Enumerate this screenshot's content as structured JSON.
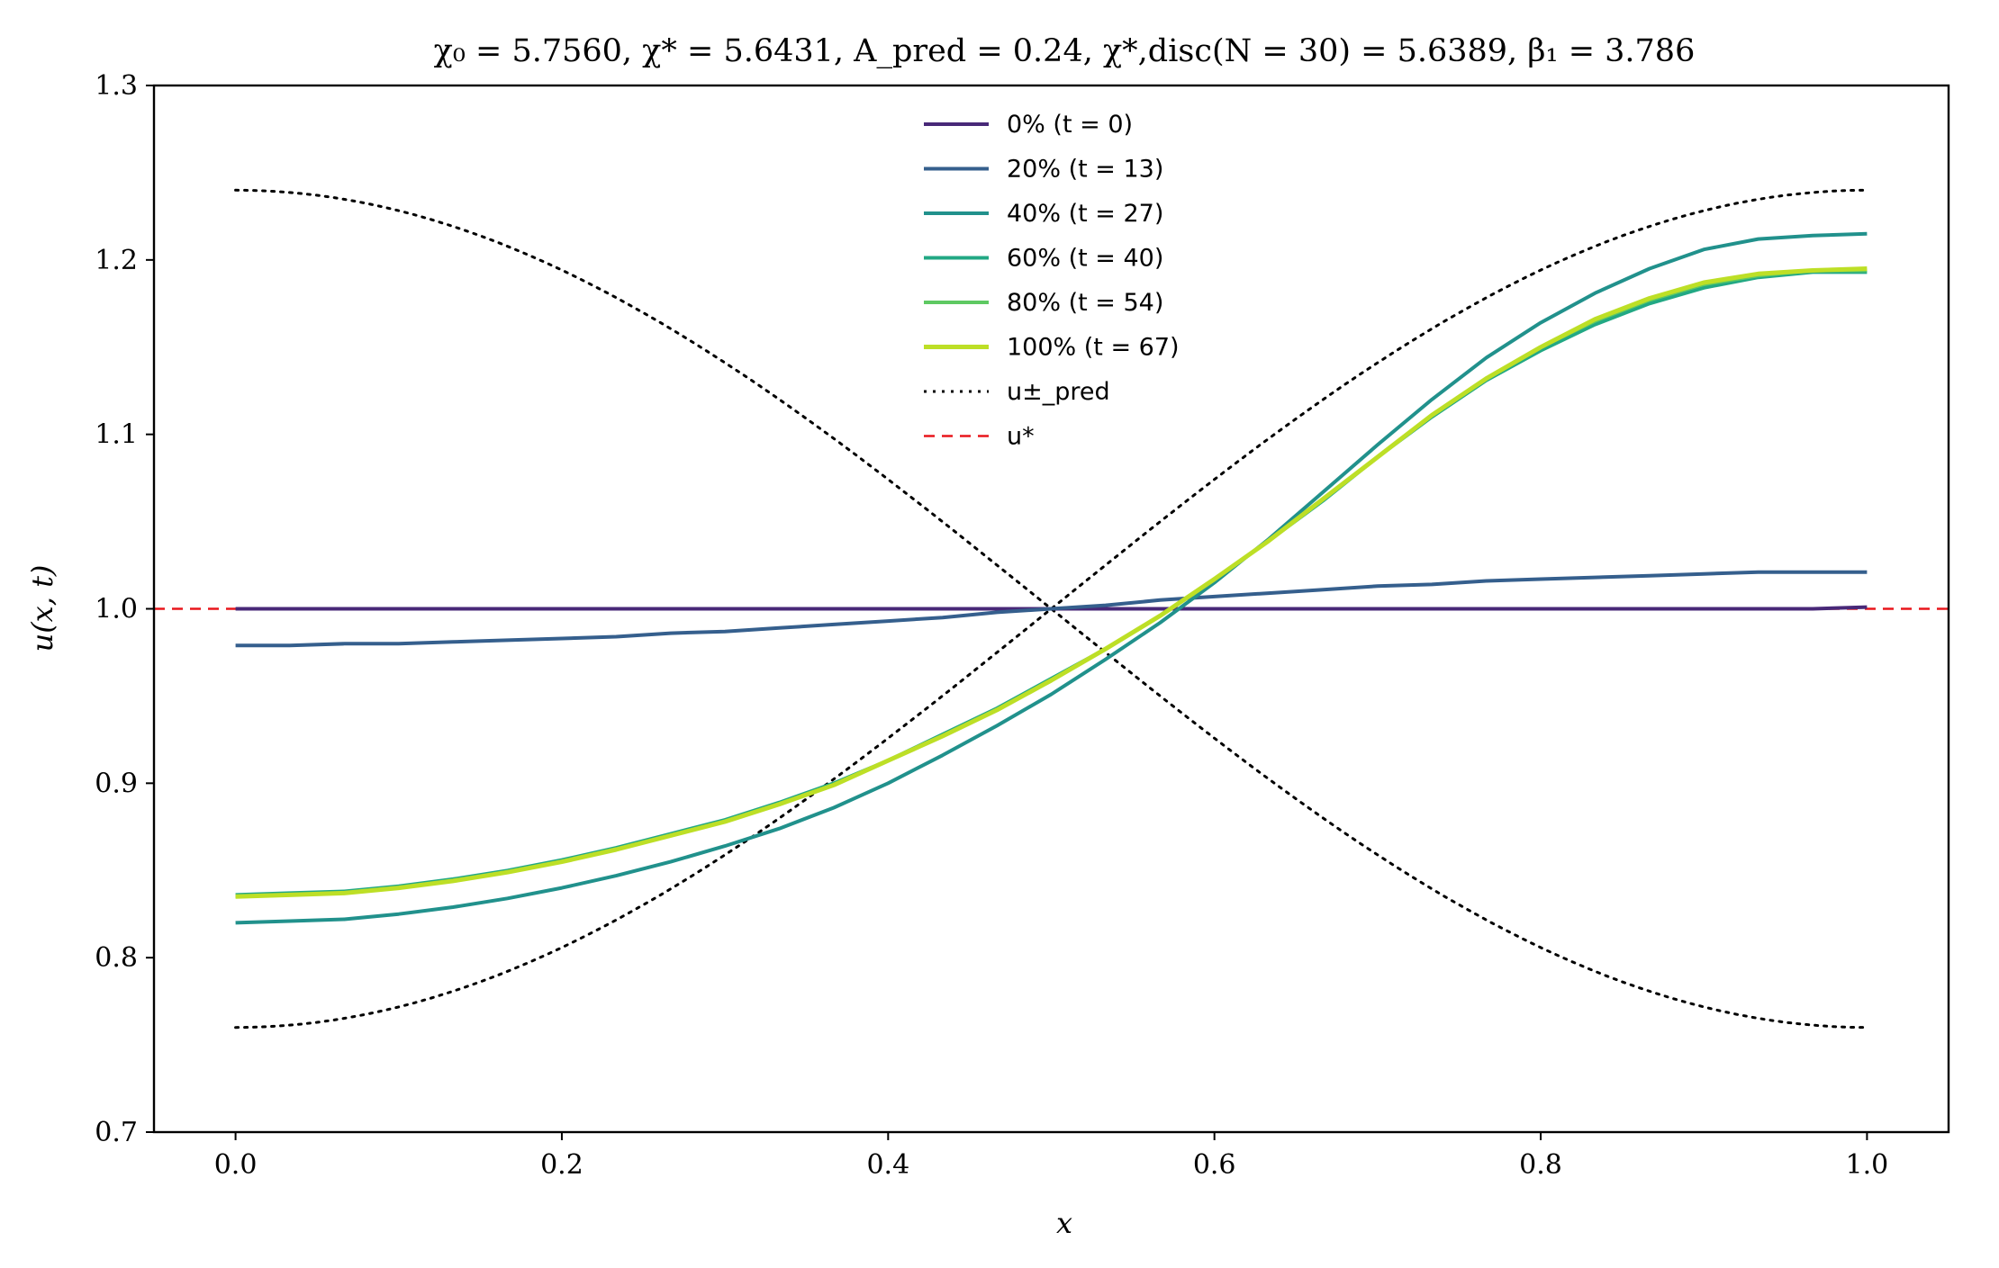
{
  "chart_data": {
    "type": "line",
    "title": "χ₀ = 5.7560,  χ* = 5.6431,  A_pred = 0.24,  χ*,disc(N = 30) = 5.6389,  β₁ = 3.786",
    "xlabel": "x",
    "ylabel": "u(x, t)",
    "xlim": [
      -0.05,
      1.05
    ],
    "ylim": [
      0.7,
      1.3
    ],
    "xticks": [
      0.0,
      0.2,
      0.4,
      0.6,
      0.8,
      1.0
    ],
    "xtick_labels": [
      "0.0",
      "0.2",
      "0.4",
      "0.6",
      "0.8",
      "1.0"
    ],
    "yticks": [
      0.7,
      0.8,
      0.9,
      1.0,
      1.1,
      1.2,
      1.3
    ],
    "ytick_labels": [
      "0.7",
      "0.8",
      "0.9",
      "1.0",
      "1.1",
      "1.2",
      "1.3"
    ],
    "grid": false,
    "legend_position": "top-center",
    "x": [
      0.0,
      0.0333,
      0.0667,
      0.1,
      0.1333,
      0.1667,
      0.2,
      0.2333,
      0.2667,
      0.3,
      0.3333,
      0.3667,
      0.4,
      0.4333,
      0.4667,
      0.5,
      0.5333,
      0.5667,
      0.6,
      0.6333,
      0.6667,
      0.7,
      0.7333,
      0.7667,
      0.8,
      0.8333,
      0.8667,
      0.9,
      0.9333,
      0.9667,
      1.0
    ],
    "series": [
      {
        "name": "0% (t = 0)",
        "color": "#482878",
        "width": 4,
        "dash": "",
        "values": [
          1.0,
          1.0,
          1.0,
          1.0,
          1.0,
          1.0,
          1.0,
          1.0,
          1.0,
          1.0,
          1.0,
          1.0,
          1.0,
          1.0,
          1.0,
          1.0,
          1.0,
          1.0,
          1.0,
          1.0,
          1.0,
          1.0,
          1.0,
          1.0,
          1.0,
          1.0,
          1.0,
          1.0,
          1.0,
          1.0,
          1.001
        ]
      },
      {
        "name": "20% (t = 13)",
        "color": "#355f8d",
        "width": 4,
        "dash": "",
        "values": [
          0.979,
          0.979,
          0.98,
          0.98,
          0.981,
          0.982,
          0.983,
          0.984,
          0.986,
          0.987,
          0.989,
          0.991,
          0.993,
          0.995,
          0.998,
          1.0,
          1.002,
          1.005,
          1.007,
          1.009,
          1.011,
          1.013,
          1.014,
          1.016,
          1.017,
          1.018,
          1.019,
          1.02,
          1.021,
          1.021,
          1.021
        ]
      },
      {
        "name": "40% (t = 27)",
        "color": "#21918c",
        "width": 4,
        "dash": "",
        "values": [
          0.82,
          0.821,
          0.822,
          0.825,
          0.829,
          0.834,
          0.84,
          0.847,
          0.855,
          0.864,
          0.874,
          0.886,
          0.9,
          0.916,
          0.933,
          0.951,
          0.971,
          0.992,
          1.015,
          1.04,
          1.067,
          1.094,
          1.12,
          1.144,
          1.164,
          1.181,
          1.195,
          1.206,
          1.212,
          1.214,
          1.215
        ]
      },
      {
        "name": "60% (t = 40)",
        "color": "#22a884",
        "width": 4,
        "dash": "",
        "values": [
          0.836,
          0.837,
          0.838,
          0.841,
          0.845,
          0.85,
          0.856,
          0.863,
          0.871,
          0.879,
          0.889,
          0.9,
          0.913,
          0.928,
          0.943,
          0.96,
          0.977,
          0.996,
          1.017,
          1.039,
          1.062,
          1.087,
          1.11,
          1.131,
          1.148,
          1.163,
          1.175,
          1.184,
          1.19,
          1.193,
          1.193
        ]
      },
      {
        "name": "80% (t = 54)",
        "color": "#5ec962",
        "width": 4,
        "dash": "",
        "values": [
          0.835,
          0.836,
          0.837,
          0.84,
          0.844,
          0.849,
          0.855,
          0.862,
          0.87,
          0.878,
          0.888,
          0.899,
          0.913,
          0.927,
          0.942,
          0.959,
          0.977,
          0.996,
          1.017,
          1.039,
          1.063,
          1.087,
          1.111,
          1.132,
          1.15,
          1.165,
          1.177,
          1.186,
          1.191,
          1.194,
          1.194
        ]
      },
      {
        "name": "100% (t = 67)",
        "color": "#bddf26",
        "width": 5,
        "dash": "",
        "values": [
          0.835,
          0.836,
          0.837,
          0.84,
          0.844,
          0.849,
          0.855,
          0.862,
          0.87,
          0.878,
          0.888,
          0.899,
          0.913,
          0.927,
          0.942,
          0.959,
          0.977,
          0.996,
          1.017,
          1.039,
          1.063,
          1.087,
          1.111,
          1.132,
          1.15,
          1.166,
          1.178,
          1.187,
          1.192,
          1.194,
          1.195
        ]
      }
    ],
    "envelope": {
      "name": "u±_pred",
      "color": "#000000",
      "center": 1.0,
      "amplitude": 0.24,
      "dash": "3 7"
    },
    "reference": {
      "name": "u*",
      "value": 1.0,
      "color": "#e8161b",
      "dash": "12 8"
    }
  }
}
